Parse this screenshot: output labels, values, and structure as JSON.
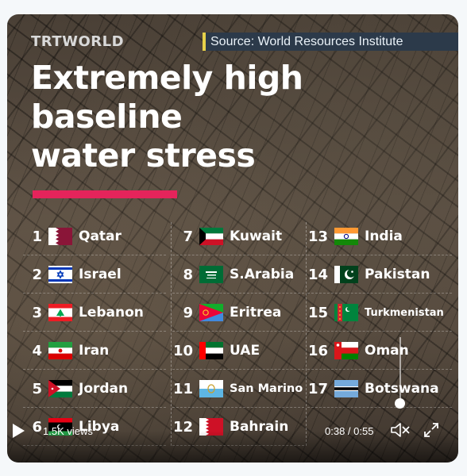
{
  "header": {
    "logo": "TRTWORLD",
    "source": "Source: World Resources Institute"
  },
  "title": {
    "line1": "Extremely high",
    "line2": "baseline",
    "line3": "water stress"
  },
  "accent_color": "#e5245b",
  "countries": [
    {
      "rank": "1",
      "name": "Qatar",
      "flag": "qatar-flag-icon"
    },
    {
      "rank": "2",
      "name": "Israel",
      "flag": "israel-flag-icon"
    },
    {
      "rank": "3",
      "name": "Lebanon",
      "flag": "lebanon-flag-icon"
    },
    {
      "rank": "4",
      "name": "Iran",
      "flag": "iran-flag-icon"
    },
    {
      "rank": "5",
      "name": "Jordan",
      "flag": "jordan-flag-icon"
    },
    {
      "rank": "6",
      "name": "Libya",
      "flag": "libya-flag-icon"
    },
    {
      "rank": "7",
      "name": "Kuwait",
      "flag": "kuwait-flag-icon"
    },
    {
      "rank": "8",
      "name": "S.Arabia",
      "flag": "saudi-arabia-flag-icon"
    },
    {
      "rank": "9",
      "name": "Eritrea",
      "flag": "eritrea-flag-icon"
    },
    {
      "rank": "10",
      "name": "UAE",
      "flag": "uae-flag-icon"
    },
    {
      "rank": "11",
      "name": "San Marino",
      "flag": "san-marino-flag-icon"
    },
    {
      "rank": "12",
      "name": "Bahrain",
      "flag": "bahrain-flag-icon"
    },
    {
      "rank": "13",
      "name": "India",
      "flag": "india-flag-icon"
    },
    {
      "rank": "14",
      "name": "Pakistan",
      "flag": "pakistan-flag-icon"
    },
    {
      "rank": "15",
      "name": "Turkmenistan",
      "flag": "turkmenistan-flag-icon"
    },
    {
      "rank": "16",
      "name": "Oman",
      "flag": "oman-flag-icon"
    },
    {
      "rank": "17",
      "name": "Botswana",
      "flag": "botswana-flag-icon"
    }
  ],
  "player": {
    "views": "1.5K views",
    "time": "0:38 / 0:55",
    "progress": 0.69,
    "volume_level": 0.0,
    "icons": [
      "play-icon",
      "mute-icon",
      "fullscreen-icon"
    ]
  }
}
